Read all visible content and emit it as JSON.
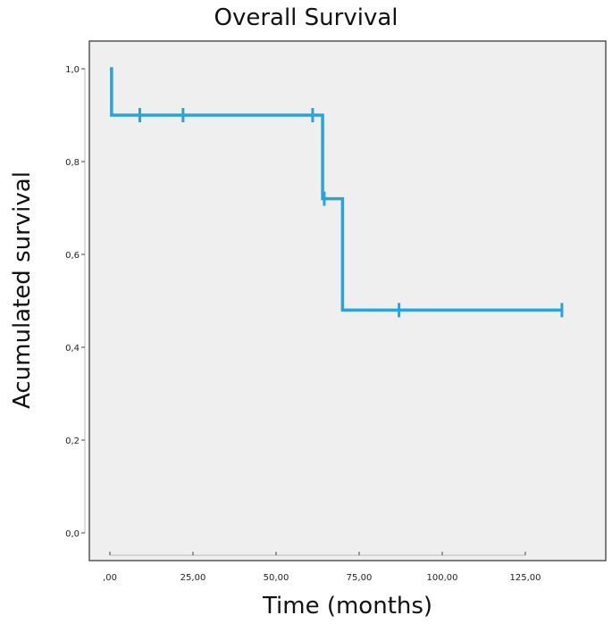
{
  "chart_data": {
    "type": "line",
    "title": "Overall Survival",
    "xlabel": "Time (months)",
    "ylabel": "Acumulated survival",
    "xlim": [
      0,
      137
    ],
    "ylim": [
      0,
      1.0
    ],
    "x_ticks": [
      0,
      25,
      50,
      75,
      100,
      125
    ],
    "x_tick_labels": [
      ",00",
      "25,00",
      "50,00",
      "75,00",
      "100,00",
      "125,00"
    ],
    "y_ticks": [
      0,
      0.2,
      0.4,
      0.6,
      0.8,
      1.0
    ],
    "y_tick_labels": [
      "0,0",
      "0,2",
      "0,4",
      "0,6",
      "0,8",
      "1,0"
    ],
    "grid": false,
    "colors": {
      "line": "#29a3dc",
      "plot_bg": "#efefef",
      "frame": "#555555"
    },
    "series": [
      {
        "step_points": [
          {
            "x": 0,
            "y": 1.0
          },
          {
            "x": 0.5,
            "y": 0.9
          },
          {
            "x": 64,
            "y": 0.72
          },
          {
            "x": 70,
            "y": 0.48
          },
          {
            "x": 136,
            "y": 0.48
          }
        ],
        "censored": [
          {
            "x": 9,
            "y": 0.9
          },
          {
            "x": 22,
            "y": 0.9
          },
          {
            "x": 61,
            "y": 0.9
          },
          {
            "x": 64.5,
            "y": 0.72
          },
          {
            "x": 87,
            "y": 0.48
          },
          {
            "x": 136,
            "y": 0.48
          }
        ]
      }
    ]
  }
}
